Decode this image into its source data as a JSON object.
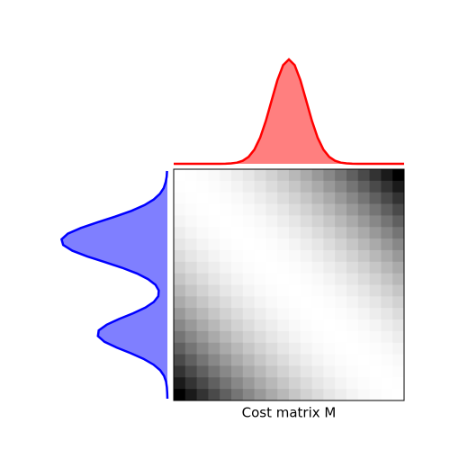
{
  "chart_data": {
    "type": "heatmap",
    "xlabel": "Cost matrix M",
    "colormap": "gray_r",
    "zlim": [
      0,
      1
    ],
    "matrix": [
      [
        0,
        0.003,
        0.011,
        0.025,
        0.044,
        0.069,
        0.1,
        0.136,
        0.177,
        0.224,
        0.277,
        0.335,
        0.399,
        0.468,
        0.543,
        0.623,
        0.709,
        0.801,
        0.898,
        1
      ],
      [
        0.003,
        0,
        0.003,
        0.011,
        0.025,
        0.044,
        0.069,
        0.1,
        0.136,
        0.177,
        0.224,
        0.277,
        0.335,
        0.399,
        0.468,
        0.543,
        0.623,
        0.709,
        0.801,
        0.898
      ],
      [
        0.011,
        0.003,
        0,
        0.003,
        0.011,
        0.025,
        0.044,
        0.069,
        0.1,
        0.136,
        0.177,
        0.224,
        0.277,
        0.335,
        0.399,
        0.468,
        0.543,
        0.623,
        0.709,
        0.801
      ],
      [
        0.025,
        0.011,
        0.003,
        0,
        0.003,
        0.011,
        0.025,
        0.044,
        0.069,
        0.1,
        0.136,
        0.177,
        0.224,
        0.277,
        0.335,
        0.399,
        0.468,
        0.543,
        0.623,
        0.709
      ],
      [
        0.044,
        0.025,
        0.011,
        0.003,
        0,
        0.003,
        0.011,
        0.025,
        0.044,
        0.069,
        0.1,
        0.136,
        0.177,
        0.224,
        0.277,
        0.335,
        0.399,
        0.468,
        0.543,
        0.623
      ],
      [
        0.069,
        0.044,
        0.025,
        0.011,
        0.003,
        0,
        0.003,
        0.011,
        0.025,
        0.044,
        0.069,
        0.1,
        0.136,
        0.177,
        0.224,
        0.277,
        0.335,
        0.399,
        0.468,
        0.543
      ],
      [
        0.1,
        0.069,
        0.044,
        0.025,
        0.011,
        0.003,
        0,
        0.003,
        0.011,
        0.025,
        0.044,
        0.069,
        0.1,
        0.136,
        0.177,
        0.224,
        0.277,
        0.335,
        0.399,
        0.468
      ],
      [
        0.136,
        0.1,
        0.069,
        0.044,
        0.025,
        0.011,
        0.003,
        0,
        0.003,
        0.011,
        0.025,
        0.044,
        0.069,
        0.1,
        0.136,
        0.177,
        0.224,
        0.277,
        0.335,
        0.399
      ],
      [
        0.177,
        0.136,
        0.1,
        0.069,
        0.044,
        0.025,
        0.011,
        0.003,
        0,
        0.003,
        0.011,
        0.025,
        0.044,
        0.069,
        0.1,
        0.136,
        0.177,
        0.224,
        0.277,
        0.335
      ],
      [
        0.224,
        0.177,
        0.136,
        0.1,
        0.069,
        0.044,
        0.025,
        0.011,
        0.003,
        0,
        0.003,
        0.011,
        0.025,
        0.044,
        0.069,
        0.1,
        0.136,
        0.177,
        0.224,
        0.277
      ],
      [
        0.277,
        0.224,
        0.177,
        0.136,
        0.1,
        0.069,
        0.044,
        0.025,
        0.011,
        0.003,
        0,
        0.003,
        0.011,
        0.025,
        0.044,
        0.069,
        0.1,
        0.136,
        0.177,
        0.224
      ],
      [
        0.335,
        0.277,
        0.224,
        0.177,
        0.136,
        0.1,
        0.069,
        0.044,
        0.025,
        0.011,
        0.003,
        0,
        0.003,
        0.011,
        0.025,
        0.044,
        0.069,
        0.1,
        0.136,
        0.177
      ],
      [
        0.399,
        0.335,
        0.277,
        0.224,
        0.177,
        0.136,
        0.1,
        0.069,
        0.044,
        0.025,
        0.011,
        0.003,
        0,
        0.003,
        0.011,
        0.025,
        0.044,
        0.069,
        0.1,
        0.136
      ],
      [
        0.468,
        0.399,
        0.335,
        0.277,
        0.224,
        0.177,
        0.136,
        0.1,
        0.069,
        0.044,
        0.025,
        0.011,
        0.003,
        0,
        0.003,
        0.011,
        0.025,
        0.044,
        0.069,
        0.1
      ],
      [
        0.543,
        0.468,
        0.399,
        0.335,
        0.277,
        0.224,
        0.177,
        0.136,
        0.1,
        0.069,
        0.044,
        0.025,
        0.011,
        0.003,
        0,
        0.003,
        0.011,
        0.025,
        0.044,
        0.069
      ],
      [
        0.623,
        0.543,
        0.468,
        0.399,
        0.335,
        0.277,
        0.224,
        0.177,
        0.136,
        0.1,
        0.069,
        0.044,
        0.025,
        0.011,
        0.003,
        0,
        0.003,
        0.011,
        0.025,
        0.044
      ],
      [
        0.709,
        0.623,
        0.543,
        0.468,
        0.399,
        0.335,
        0.277,
        0.224,
        0.177,
        0.136,
        0.1,
        0.069,
        0.044,
        0.025,
        0.011,
        0.003,
        0,
        0.003,
        0.011,
        0.025
      ],
      [
        0.801,
        0.709,
        0.623,
        0.543,
        0.468,
        0.399,
        0.335,
        0.277,
        0.224,
        0.177,
        0.136,
        0.1,
        0.069,
        0.044,
        0.025,
        0.011,
        0.003,
        0,
        0.003,
        0.011
      ],
      [
        0.898,
        0.801,
        0.709,
        0.623,
        0.543,
        0.468,
        0.399,
        0.335,
        0.277,
        0.224,
        0.177,
        0.136,
        0.1,
        0.069,
        0.044,
        0.025,
        0.011,
        0.003,
        0,
        0.003
      ],
      [
        1,
        0.898,
        0.801,
        0.709,
        0.623,
        0.543,
        0.468,
        0.399,
        0.335,
        0.277,
        0.224,
        0.177,
        0.136,
        0.1,
        0.069,
        0.044,
        0.025,
        0.011,
        0.003,
        0
      ]
    ],
    "top_distribution": {
      "color": "red",
      "vlim": [
        0,
        1
      ],
      "values": [
        0,
        0,
        0,
        0,
        0,
        0,
        0,
        0,
        0,
        0.001,
        0.004,
        0.011,
        0.029,
        0.066,
        0.135,
        0.249,
        0.411,
        0.607,
        0.801,
        0.946,
        1,
        0.946,
        0.801,
        0.607,
        0.411,
        0.249,
        0.135,
        0.066,
        0.029,
        0.011,
        0.004,
        0.001,
        0,
        0,
        0,
        0,
        0,
        0,
        0,
        0,
        0
      ]
    },
    "left_distribution": {
      "color": "blue",
      "vlim": [
        0,
        1
      ],
      "values": [
        0.003,
        0.007,
        0.017,
        0.035,
        0.07,
        0.128,
        0.216,
        0.339,
        0.49,
        0.657,
        0.815,
        0.937,
        0.997,
        0.981,
        0.895,
        0.755,
        0.59,
        0.427,
        0.286,
        0.181,
        0.112,
        0.081,
        0.086,
        0.128,
        0.208,
        0.323,
        0.454,
        0.572,
        0.647,
        0.654,
        0.592,
        0.479,
        0.347,
        0.225,
        0.131,
        0.068,
        0.031,
        0.013,
        0.005,
        0.002,
        0
      ]
    }
  }
}
